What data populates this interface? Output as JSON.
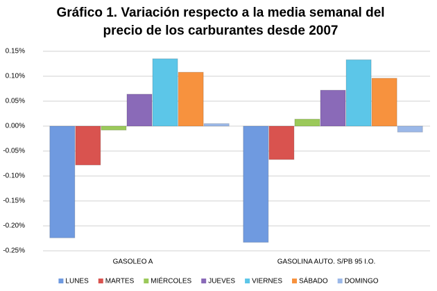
{
  "chart_data": {
    "type": "bar",
    "title": [
      "Gráfico 1. Variación respecto a la media semanal del",
      "precio de los carburantes desde 2007"
    ],
    "categories": [
      "GASOLEO A",
      "GASOLINA  AUTO. S/PB 95 I.O."
    ],
    "series": [
      {
        "name": "LUNES",
        "color": "#6f9ae0",
        "values": [
          -0.224,
          -0.233
        ]
      },
      {
        "name": "MARTES",
        "color": "#d9534f",
        "values": [
          -0.078,
          -0.067
        ]
      },
      {
        "name": "MIÉRCOLES",
        "color": "#9bc95a",
        "values": [
          -0.008,
          0.014
        ]
      },
      {
        "name": "JUEVES",
        "color": "#8a6ab8",
        "values": [
          0.064,
          0.072
        ]
      },
      {
        "name": "VIERNES",
        "color": "#5cc6e8",
        "values": [
          0.135,
          0.133
        ]
      },
      {
        "name": "SÁBADO",
        "color": "#f7923e",
        "values": [
          0.108,
          0.096
        ]
      },
      {
        "name": "DOMINGO",
        "color": "#9bb8e8",
        "values": [
          0.005,
          -0.012
        ]
      }
    ],
    "ylim": [
      -0.25,
      0.15
    ],
    "yticks": [
      {
        "value": -0.25,
        "label": "-0.25%"
      },
      {
        "value": -0.2,
        "label": "-0.20%"
      },
      {
        "value": -0.15,
        "label": "-0.15%"
      },
      {
        "value": -0.1,
        "label": "-0.10%"
      },
      {
        "value": -0.05,
        "label": "-0.05%"
      },
      {
        "value": 0,
        "label": "0.00%"
      },
      {
        "value": 0.05,
        "label": "0.05%"
      },
      {
        "value": 0.1,
        "label": "0.10%"
      },
      {
        "value": 0.15,
        "label": "0.15%"
      }
    ],
    "grid": true,
    "legend": "bottom"
  }
}
